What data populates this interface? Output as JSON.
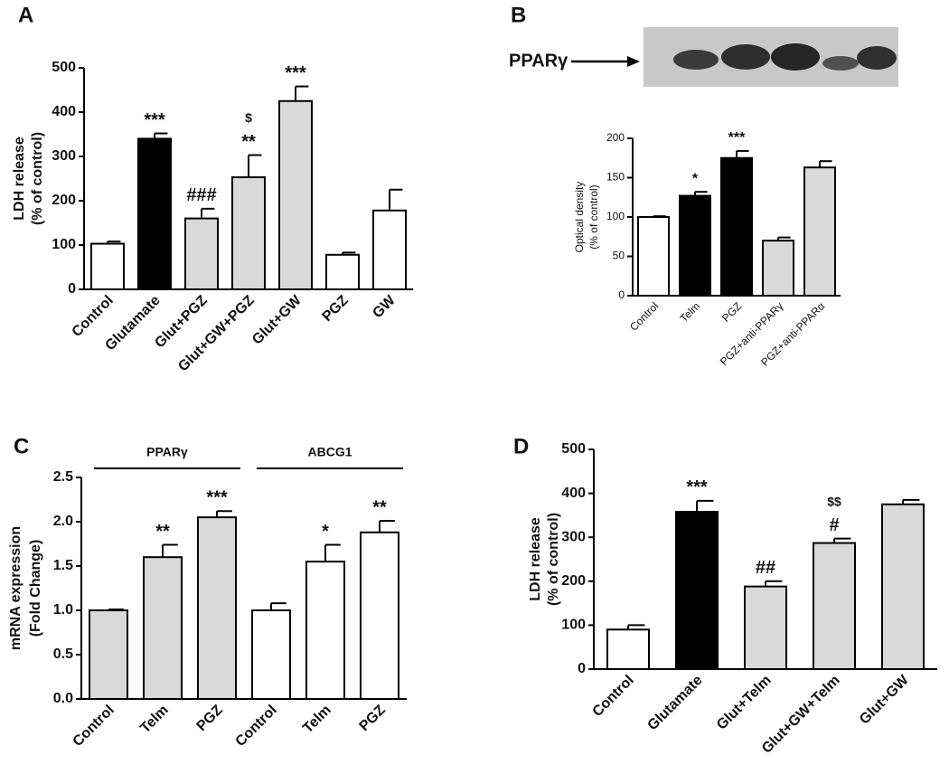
{
  "chart_data": [
    {
      "panel": "A",
      "type": "bar",
      "ylabel": [
        "LDH release",
        "(% of control)"
      ],
      "categories": [
        "Control",
        "Glutamate",
        "Glut+PGZ",
        "Glut+GW+PGZ",
        "Glut+GW",
        "PGZ",
        "GW"
      ],
      "values": [
        103,
        340,
        160,
        253,
        425,
        78,
        178
      ],
      "errors": [
        5,
        12,
        22,
        50,
        33,
        5,
        47
      ],
      "colors": [
        "#ffffff",
        "#000000",
        "#d9d9d9",
        "#d9d9d9",
        "#d9d9d9",
        "#ffffff",
        "#ffffff"
      ],
      "annotations": [
        null,
        [
          "***"
        ],
        [
          "###"
        ],
        [
          "$",
          "**"
        ],
        [
          "***"
        ],
        null,
        null
      ],
      "ylim": [
        0,
        500
      ],
      "yticks": [
        0,
        100,
        200,
        300,
        400,
        500
      ]
    },
    {
      "panel": "B",
      "type": "bar",
      "blot_label": "PPARγ",
      "ylabel": [
        "Optical density",
        "(% of control)"
      ],
      "categories": [
        "Control",
        "Telm",
        "PGZ",
        "PGZ+anti-PPARγ",
        "PGZ+anti-PPARα"
      ],
      "values": [
        100,
        127,
        175,
        70,
        163
      ],
      "errors": [
        1,
        5,
        9,
        4,
        8
      ],
      "colors": [
        "#ffffff",
        "#000000",
        "#000000",
        "#d9d9d9",
        "#d9d9d9"
      ],
      "annotations": [
        null,
        [
          "*"
        ],
        [
          "***"
        ],
        null,
        null
      ],
      "ylim": [
        0,
        200
      ],
      "yticks": [
        0,
        50,
        100,
        150,
        200
      ]
    },
    {
      "panel": "C",
      "type": "bar",
      "groups": [
        "PPARγ",
        "ABCG1"
      ],
      "ylabel": [
        "mRNA expression",
        "(Fold Change)"
      ],
      "categories": [
        "Control",
        "Telm",
        "PGZ",
        "Control",
        "Telm",
        "PGZ"
      ],
      "values": [
        1.0,
        1.6,
        2.05,
        1.0,
        1.55,
        1.88
      ],
      "errors": [
        0.01,
        0.14,
        0.07,
        0.08,
        0.19,
        0.13
      ],
      "colors": [
        "#d9d9d9",
        "#d9d9d9",
        "#d9d9d9",
        "#ffffff",
        "#ffffff",
        "#ffffff"
      ],
      "annotations": [
        null,
        [
          "**"
        ],
        [
          "***"
        ],
        null,
        [
          "*"
        ],
        [
          "**"
        ]
      ],
      "ylim": [
        0,
        2.5
      ],
      "yticks": [
        {
          "value": 0,
          "label": "0.0"
        },
        0.5,
        {
          "value": 1,
          "label": "1.0"
        },
        1.5,
        {
          "value": 2,
          "label": "2.0"
        },
        2.5
      ]
    },
    {
      "panel": "D",
      "type": "bar",
      "ylabel": [
        "LDH release",
        "(% of control)"
      ],
      "categories": [
        "Control",
        "Glutamate",
        "Glut+Telm",
        "Glut+GW+Telm",
        "Glut+GW"
      ],
      "values": [
        90,
        358,
        188,
        287,
        375
      ],
      "errors": [
        10,
        25,
        12,
        10,
        10
      ],
      "colors": [
        "#ffffff",
        "#000000",
        "#d9d9d9",
        "#d9d9d9",
        "#d9d9d9"
      ],
      "annotations": [
        null,
        [
          "***"
        ],
        [
          "##"
        ],
        [
          "$$",
          "#"
        ],
        null
      ],
      "ylim": [
        0,
        500
      ],
      "yticks": [
        0,
        100,
        200,
        300,
        400,
        500
      ]
    }
  ]
}
